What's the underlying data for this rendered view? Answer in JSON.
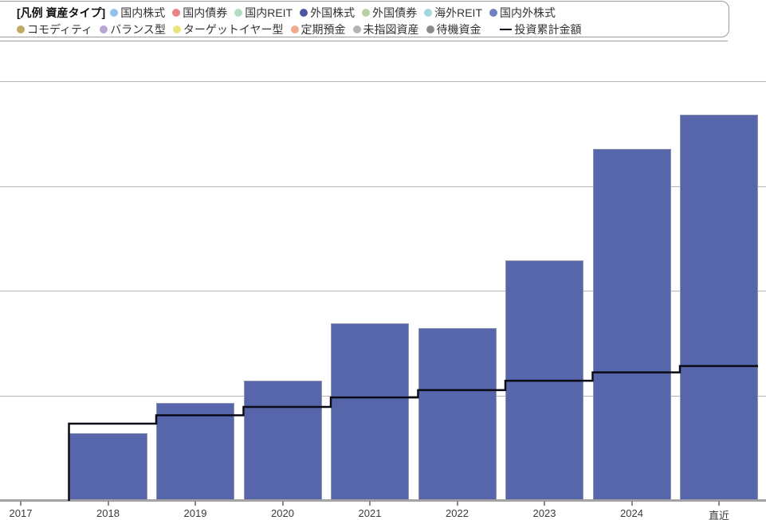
{
  "legend": {
    "title": "[凡例 資産タイプ]",
    "rows": [
      [
        {
          "label": "国内株式",
          "color": "#92c1e9",
          "marker": "dot"
        },
        {
          "label": "国内債券",
          "color": "#ed8382",
          "marker": "dot"
        },
        {
          "label": "国内REIT",
          "color": "#b2dcc3",
          "marker": "dot"
        },
        {
          "label": "外国株式",
          "color": "#4c57a4",
          "marker": "dot"
        },
        {
          "label": "外国債券",
          "color": "#b9cfa4",
          "marker": "dot"
        },
        {
          "label": "海外REIT",
          "color": "#9ed8da",
          "marker": "dot"
        },
        {
          "label": "国内外株式",
          "color": "#7080c0",
          "marker": "dot"
        }
      ],
      [
        {
          "label": "コモディティ",
          "color": "#bfa964",
          "marker": "dot"
        },
        {
          "label": "バランス型",
          "color": "#b9a4d6",
          "marker": "dot"
        },
        {
          "label": "ターゲットイヤー型",
          "color": "#ece67a",
          "marker": "dot"
        },
        {
          "label": "定期預金",
          "color": "#f2a98c",
          "marker": "dot"
        },
        {
          "label": "未指図資産",
          "color": "#b3b3b3",
          "marker": "dot"
        },
        {
          "label": "待機資金",
          "color": "#8a8a8a",
          "marker": "dot"
        },
        {
          "label": "投資累計金額",
          "color": "#0a0a14",
          "marker": "line"
        }
      ]
    ]
  },
  "chart_data": {
    "type": "bar",
    "categories": [
      "2017",
      "2018",
      "2019",
      "2020",
      "2021",
      "2022",
      "2023",
      "2024",
      "直近"
    ],
    "series": [
      {
        "name": "国内外株式",
        "type": "bar",
        "color": "#5765ab",
        "values": [
          null,
          0.64,
          0.93,
          1.14,
          1.69,
          1.64,
          2.29,
          3.35,
          3.68
        ]
      },
      {
        "name": "投資累計金額",
        "type": "step-line",
        "color": "#0a0a14",
        "values": [
          null,
          0.73,
          0.81,
          0.89,
          0.98,
          1.05,
          1.14,
          1.22,
          1.28
        ]
      }
    ],
    "title": "",
    "xlabel": "",
    "ylabel": "",
    "ylim": [
      0,
      4
    ],
    "grid": true,
    "legend_position": "top",
    "y_axis_labels_visible": false,
    "unit_note": "y values are relative units: 1 unit = 1 gridline interval (no value axis shown)"
  }
}
